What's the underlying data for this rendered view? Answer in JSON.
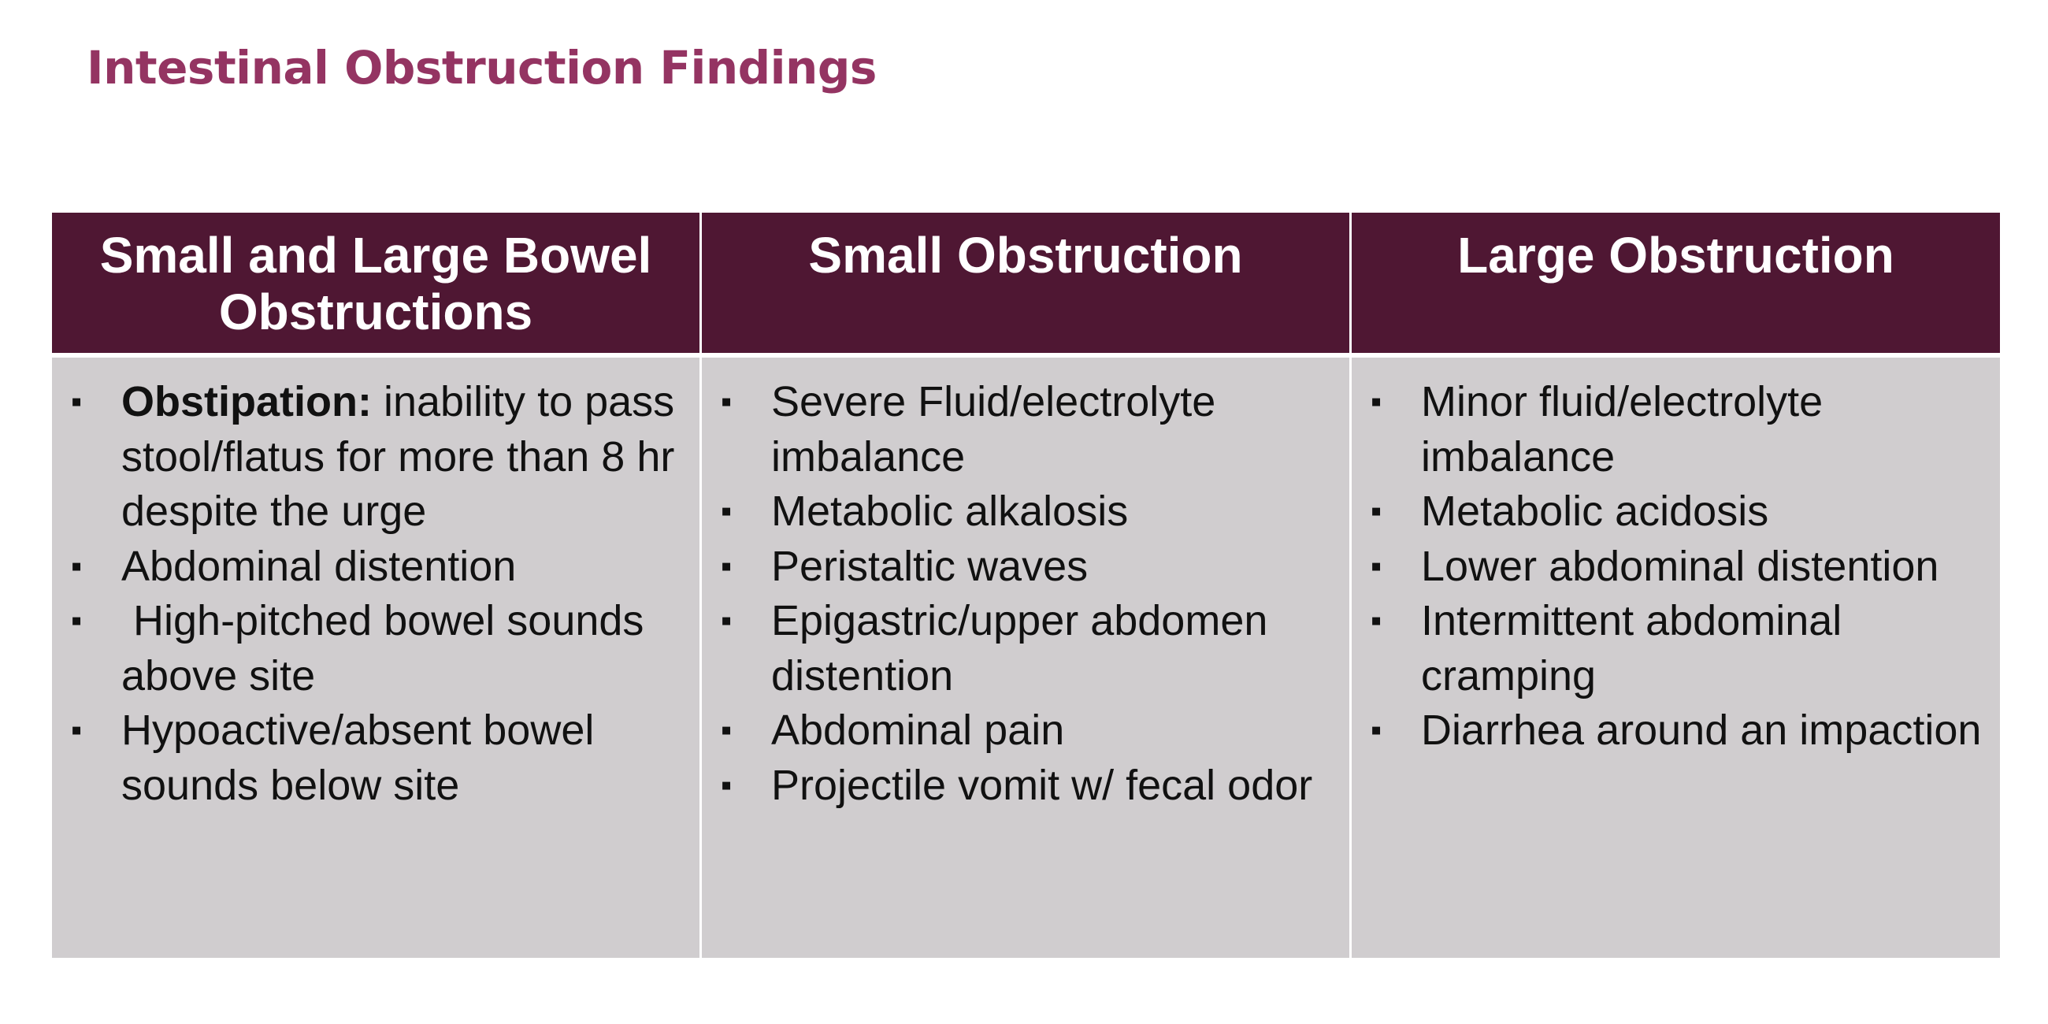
{
  "title": "Intestinal Obstruction Findings",
  "colors": {
    "title": "#943462",
    "header_bg": "#4f1733",
    "header_text": "#ffffff",
    "body_bg": "#d0cdcf"
  },
  "bullet_glyph": "▪",
  "columns": [
    {
      "header": "Small and Large Bowel Obstructions",
      "items": [
        {
          "bold": "Obstipation:",
          "text": " inability to pass stool/flatus for more than 8 hr despite the urge"
        },
        {
          "text": "Abdominal distention"
        },
        {
          "text": " High-pitched bowel sounds above site"
        },
        {
          "text": "Hypoactive/absent bowel sounds below site"
        }
      ]
    },
    {
      "header": "Small Obstruction",
      "items": [
        {
          "text": "Severe Fluid/electrolyte imbalance"
        },
        {
          "text": "Metabolic alkalosis"
        },
        {
          "text": "Peristaltic waves"
        },
        {
          "text": "Epigastric/upper abdomen distention"
        },
        {
          "text": "Abdominal pain"
        },
        {
          "text": "Projectile vomit w/ fecal odor"
        }
      ]
    },
    {
      "header": "Large Obstruction",
      "items": [
        {
          "text": "Minor fluid/electrolyte imbalance"
        },
        {
          "text": "Metabolic acidosis"
        },
        {
          "text": "Lower abdominal distention"
        },
        {
          "text": "Intermittent abdominal cramping"
        },
        {
          "text": "Diarrhea around an impaction"
        }
      ]
    }
  ]
}
